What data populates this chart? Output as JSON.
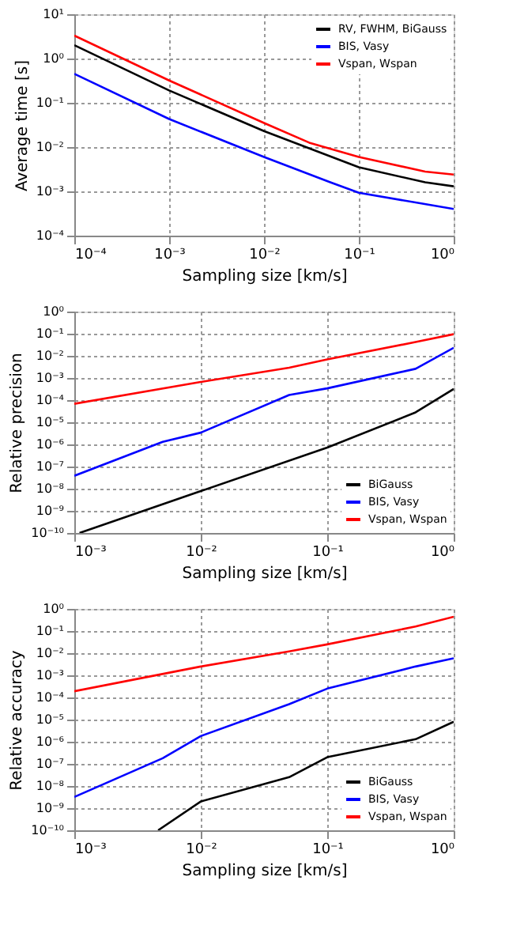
{
  "chart_data": [
    {
      "type": "line",
      "xlabel": "Sampling size [km/s]",
      "ylabel": "Average time [s]",
      "log": "xy",
      "grid": true,
      "legend": "top right",
      "line_style": "solid",
      "marker": "none",
      "xlim": [
        0.0001,
        1
      ],
      "xticks": [
        {
          "value": 0.0001,
          "label": "10⁻⁴"
        },
        {
          "value": 0.001,
          "label": "10⁻³"
        },
        {
          "value": 0.01,
          "label": "10⁻²"
        },
        {
          "value": 0.1,
          "label": "10⁻¹"
        },
        {
          "value": 1,
          "label": "10⁰"
        }
      ],
      "ylim": [
        0.0001,
        10
      ],
      "yticks": [
        {
          "value": 0.0001,
          "label": "10⁻⁴"
        },
        {
          "value": 0.001,
          "label": "10⁻³"
        },
        {
          "value": 0.01,
          "label": "10⁻²"
        },
        {
          "value": 0.1,
          "label": "10⁻¹"
        },
        {
          "value": 1,
          "label": "10⁰"
        },
        {
          "value": 10,
          "label": "10¹"
        }
      ],
      "series": [
        {
          "name": "RV, FWHM, BiGauss",
          "color": "#000000",
          "x": [
            0.0001,
            0.001,
            0.01,
            0.1,
            0.5,
            1
          ],
          "values": [
            2.0,
            0.19,
            0.023,
            0.0035,
            0.0016,
            0.0013
          ]
        },
        {
          "name": "BIS, Vasy",
          "color": "#0000ff",
          "x": [
            0.0001,
            0.001,
            0.01,
            0.05,
            0.1,
            1
          ],
          "values": [
            0.45,
            0.043,
            0.006,
            0.0016,
            0.00093,
            0.0004
          ]
        },
        {
          "name": "Vspan, Wspan",
          "color": "#ff0000",
          "x": [
            0.0001,
            0.001,
            0.01,
            0.03,
            0.1,
            0.5,
            1
          ],
          "values": [
            3.3,
            0.32,
            0.035,
            0.0126,
            0.006,
            0.0028,
            0.0024
          ]
        }
      ]
    },
    {
      "type": "line",
      "xlabel": "Sampling size [km/s]",
      "ylabel": "Relative precision",
      "log": "xy",
      "grid": true,
      "legend": "bottom right",
      "line_style": "solid",
      "marker": "none",
      "xlim": [
        0.001,
        1
      ],
      "xticks": [
        {
          "value": 0.001,
          "label": "10⁻³"
        },
        {
          "value": 0.01,
          "label": "10⁻²"
        },
        {
          "value": 0.1,
          "label": "10⁻¹"
        },
        {
          "value": 1,
          "label": "10⁰"
        }
      ],
      "ylim": [
        1e-10,
        1
      ],
      "yticks": [
        {
          "value": 1e-10,
          "label": "10⁻¹⁰"
        },
        {
          "value": 1e-09,
          "label": "10⁻⁹"
        },
        {
          "value": 1e-08,
          "label": "10⁻⁸"
        },
        {
          "value": 1e-07,
          "label": "10⁻⁷"
        },
        {
          "value": 1e-06,
          "label": "10⁻⁶"
        },
        {
          "value": 1e-05,
          "label": "10⁻⁵"
        },
        {
          "value": 0.0001,
          "label": "10⁻⁴"
        },
        {
          "value": 0.001,
          "label": "10⁻³"
        },
        {
          "value": 0.01,
          "label": "10⁻²"
        },
        {
          "value": 0.1,
          "label": "10⁻¹"
        },
        {
          "value": 1,
          "label": "10⁰"
        }
      ],
      "series": [
        {
          "name": "BiGauss",
          "color": "#000000",
          "x": [
            0.0011,
            0.01,
            0.1,
            0.5,
            1
          ],
          "values": [
            1e-10,
            7.8e-09,
            7.2e-07,
            2.8e-05,
            0.00032
          ]
        },
        {
          "name": "BIS, Vasy",
          "color": "#0000ff",
          "x": [
            0.001,
            0.005,
            0.01,
            0.05,
            0.1,
            0.5,
            1
          ],
          "values": [
            3.8e-08,
            1.3e-06,
            3.4e-06,
            0.00017,
            0.00034,
            0.0026,
            0.023
          ]
        },
        {
          "name": "Vspan, Wspan",
          "color": "#ff0000",
          "x": [
            0.001,
            0.01,
            0.05,
            0.1,
            0.5,
            1
          ],
          "values": [
            6.8e-05,
            0.00066,
            0.0029,
            0.0069,
            0.042,
            0.095
          ]
        }
      ]
    },
    {
      "type": "line",
      "xlabel": "Sampling size [km/s]",
      "ylabel": "Relative accuracy",
      "log": "xy",
      "grid": true,
      "legend": "bottom right",
      "line_style": "solid",
      "marker": "none",
      "xlim": [
        0.001,
        1
      ],
      "xticks": [
        {
          "value": 0.001,
          "label": "10⁻³"
        },
        {
          "value": 0.01,
          "label": "10⁻²"
        },
        {
          "value": 0.1,
          "label": "10⁻¹"
        },
        {
          "value": 1,
          "label": "10⁰"
        }
      ],
      "ylim": [
        1e-10,
        1
      ],
      "yticks": [
        {
          "value": 1e-10,
          "label": "10⁻¹⁰"
        },
        {
          "value": 1e-09,
          "label": "10⁻⁹"
        },
        {
          "value": 1e-08,
          "label": "10⁻⁸"
        },
        {
          "value": 1e-07,
          "label": "10⁻⁷"
        },
        {
          "value": 1e-06,
          "label": "10⁻⁶"
        },
        {
          "value": 1e-05,
          "label": "10⁻⁵"
        },
        {
          "value": 0.0001,
          "label": "10⁻⁴"
        },
        {
          "value": 0.001,
          "label": "10⁻³"
        },
        {
          "value": 0.01,
          "label": "10⁻²"
        },
        {
          "value": 0.1,
          "label": "10⁻¹"
        },
        {
          "value": 1,
          "label": "10⁰"
        }
      ],
      "series": [
        {
          "name": "BiGauss",
          "color": "#000000",
          "x": [
            0.0046,
            0.01,
            0.05,
            0.1,
            0.5,
            1
          ],
          "values": [
            1e-10,
            2e-09,
            2.5e-08,
            2e-07,
            1.3e-06,
            8e-06
          ]
        },
        {
          "name": "BIS, Vasy",
          "color": "#0000ff",
          "x": [
            0.001,
            0.005,
            0.01,
            0.05,
            0.1,
            0.5,
            1
          ],
          "values": [
            3.2e-09,
            1.8e-07,
            1.8e-06,
            5e-05,
            0.00025,
            0.0025,
            0.0059
          ]
        },
        {
          "name": "Vspan, Wspan",
          "color": "#ff0000",
          "x": [
            0.001,
            0.01,
            0.05,
            0.1,
            0.5,
            1
          ],
          "values": [
            0.00019,
            0.0025,
            0.012,
            0.025,
            0.16,
            0.44
          ]
        }
      ]
    }
  ]
}
